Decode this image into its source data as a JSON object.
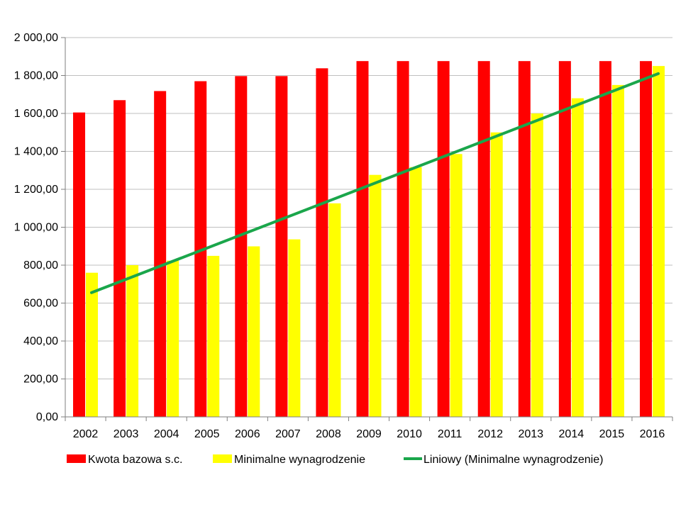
{
  "chart_data": {
    "type": "bar",
    "title": "",
    "xlabel": "",
    "ylabel": "",
    "categories": [
      "2002",
      "2003",
      "2004",
      "2005",
      "2006",
      "2007",
      "2008",
      "2009",
      "2010",
      "2011",
      "2012",
      "2013",
      "2014",
      "2015",
      "2016"
    ],
    "series": [
      {
        "name": "Kwota bazowa s.c.",
        "color": "#ff0000",
        "values": [
          1605,
          1670,
          1718,
          1770,
          1797,
          1797,
          1838,
          1876,
          1876,
          1876,
          1876,
          1876,
          1876,
          1876,
          1876
        ]
      },
      {
        "name": "Minimalne wynagrodzenie",
        "color": "#ffff00",
        "values": [
          760,
          800,
          824,
          849,
          899.1,
          936,
          1126,
          1276,
          1317,
          1386,
          1500,
          1600,
          1680,
          1750,
          1850
        ]
      }
    ],
    "trendline": {
      "name": "Liniowy (Minimalne wynagrodzenie)",
      "color": "#1aa64b",
      "type": "linear",
      "start": 655,
      "end": 1810
    },
    "ylim": [
      0,
      2000
    ],
    "yticks": [
      "0,00",
      "200,00",
      "400,00",
      "600,00",
      "800,00",
      "1 000,00",
      "1 200,00",
      "1 400,00",
      "1 600,00",
      "1 800,00",
      "2 000,00"
    ],
    "grid": true,
    "legend": "bottom"
  }
}
